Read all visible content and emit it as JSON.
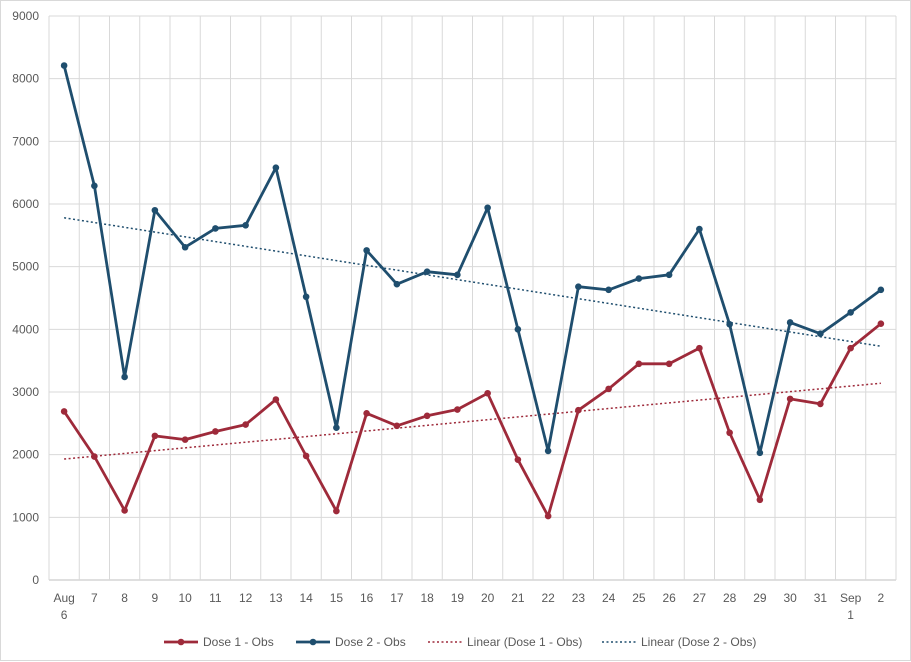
{
  "chart_data": {
    "type": "line",
    "title": "",
    "xlabel": "",
    "ylabel": "",
    "ylim": [
      0,
      9000
    ],
    "yticks": [
      0,
      1000,
      2000,
      3000,
      4000,
      5000,
      6000,
      7000,
      8000,
      9000
    ],
    "grid": true,
    "legend_position": "bottom",
    "categories": [
      {
        "top": "Aug",
        "bottom": "6"
      },
      {
        "top": "7",
        "bottom": ""
      },
      {
        "top": "8",
        "bottom": ""
      },
      {
        "top": "9",
        "bottom": ""
      },
      {
        "top": "10",
        "bottom": ""
      },
      {
        "top": "11",
        "bottom": ""
      },
      {
        "top": "12",
        "bottom": ""
      },
      {
        "top": "13",
        "bottom": ""
      },
      {
        "top": "14",
        "bottom": ""
      },
      {
        "top": "15",
        "bottom": ""
      },
      {
        "top": "16",
        "bottom": ""
      },
      {
        "top": "17",
        "bottom": ""
      },
      {
        "top": "18",
        "bottom": ""
      },
      {
        "top": "19",
        "bottom": ""
      },
      {
        "top": "20",
        "bottom": ""
      },
      {
        "top": "21",
        "bottom": ""
      },
      {
        "top": "22",
        "bottom": ""
      },
      {
        "top": "23",
        "bottom": ""
      },
      {
        "top": "24",
        "bottom": ""
      },
      {
        "top": "25",
        "bottom": ""
      },
      {
        "top": "26",
        "bottom": ""
      },
      {
        "top": "27",
        "bottom": ""
      },
      {
        "top": "28",
        "bottom": ""
      },
      {
        "top": "29",
        "bottom": ""
      },
      {
        "top": "30",
        "bottom": ""
      },
      {
        "top": "31",
        "bottom": ""
      },
      {
        "top": "Sep",
        "bottom": "1"
      },
      {
        "top": "2",
        "bottom": ""
      }
    ],
    "series": [
      {
        "name": "Dose 1 - Obs",
        "color": "#9e2a3a",
        "values": [
          2690,
          1970,
          1110,
          2300,
          2240,
          2370,
          2480,
          2880,
          1980,
          1100,
          2660,
          2460,
          2620,
          2720,
          2980,
          1920,
          1020,
          2710,
          3050,
          3450,
          3450,
          3700,
          2350,
          1280,
          2890,
          2810,
          3700,
          4090
        ]
      },
      {
        "name": "Dose 2 - Obs",
        "color": "#1f4e6e",
        "values": [
          8210,
          6290,
          3240,
          5900,
          5310,
          5610,
          5660,
          6580,
          4520,
          2430,
          5260,
          4720,
          4920,
          4870,
          5940,
          4000,
          2060,
          4680,
          4630,
          4810,
          4870,
          5600,
          4080,
          2030,
          4110,
          3930,
          4270,
          4630
        ]
      }
    ],
    "trendlines": [
      {
        "name": "Linear (Dose 1 - Obs)",
        "color": "#9e2a3a",
        "start": 1930,
        "end": 3140
      },
      {
        "name": "Linear (Dose 2 - Obs)",
        "color": "#1f4e6e",
        "start": 5780,
        "end": 3730
      }
    ]
  }
}
